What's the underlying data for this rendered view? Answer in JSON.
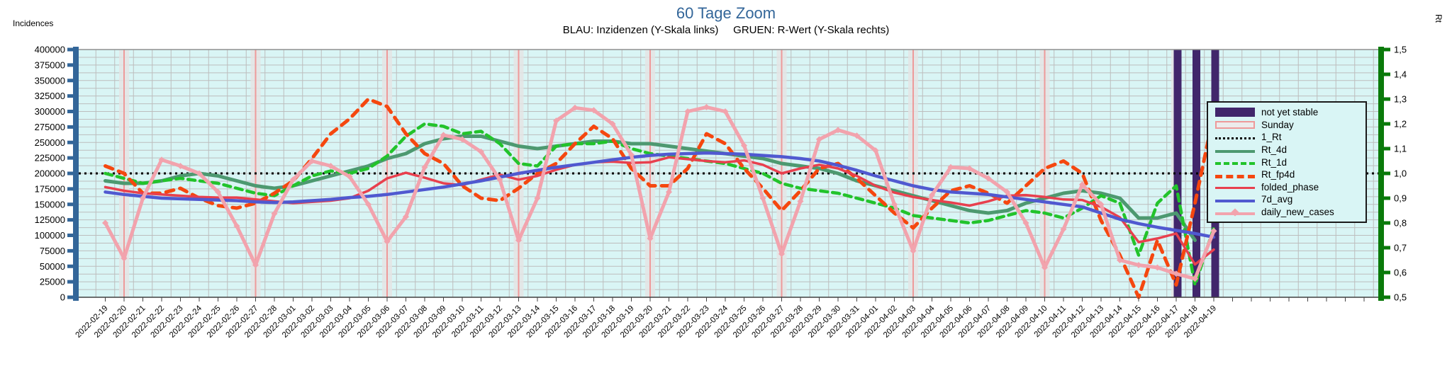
{
  "title": "60 Tage Zoom",
  "subtitle": "BLAU: Inzidenzen (Y-Skala links)     GRUEN: R-Wert (Y-Skala rechts)",
  "left_axis": {
    "label": "Incidences",
    "min": 0,
    "max": 400000,
    "tick_step": 25000,
    "tick_labels": [
      "0",
      "25000",
      "50000",
      "75000",
      "100000",
      "125000",
      "150000",
      "175000",
      "200000",
      "225000",
      "250000",
      "275000",
      "300000",
      "325000",
      "350000",
      "375000",
      "400000"
    ]
  },
  "right_axis": {
    "label": "Rt",
    "min": 0.5,
    "max": 1.5,
    "tick_step": 0.1,
    "tick_labels": [
      "0,5",
      "0,6",
      "0,7",
      "0,8",
      "0,9",
      "1,0",
      "1,1",
      "1,2",
      "1,3",
      "1,4",
      "1,5"
    ]
  },
  "colors": {
    "plot_bg": "#d9f5f5",
    "grid": "#bdbdbd",
    "axis_left": "#336699",
    "axis_right": "#0a7a0a",
    "title": "#336699",
    "sunday_band": "#e4e4e4",
    "sunday_line": "#ee9a9a",
    "not_yet_stable": "#41266b",
    "rt_4d": "#4d9970",
    "rt_1d": "#22c32b",
    "rt_fp4d": "#f5470f",
    "folded_phase": "#e8404e",
    "7d_avg": "#5059d0",
    "daily_new_cases": "#f2a3ad",
    "reference": "#000000"
  },
  "legend": {
    "items": [
      {
        "name": "not yet stable",
        "label": "not yet stable",
        "swatch": "bar",
        "color_key": "not_yet_stable"
      },
      {
        "name": "Sunday",
        "label": "Sunday",
        "swatch": "box",
        "color_key": "sunday_line"
      },
      {
        "name": "1_Rt",
        "label": "1_Rt",
        "swatch": "line",
        "color_key": "reference",
        "dash": "dotted",
        "width": 3
      },
      {
        "name": "Rt_4d",
        "label": "Rt_4d",
        "swatch": "line",
        "color_key": "rt_4d",
        "dash": "solid",
        "width": 4
      },
      {
        "name": "Rt_1d",
        "label": "Rt_1d",
        "swatch": "line",
        "color_key": "rt_1d",
        "dash": "dashed",
        "width": 4
      },
      {
        "name": "Rt_fp4d",
        "label": "Rt_fp4d",
        "swatch": "line",
        "color_key": "rt_fp4d",
        "dash": "dashed",
        "width": 5
      },
      {
        "name": "folded_phase",
        "label": "folded_phase",
        "swatch": "line",
        "color_key": "folded_phase",
        "dash": "solid",
        "width": 3
      },
      {
        "name": "7d_avg",
        "label": "7d_avg",
        "swatch": "line",
        "color_key": "7d_avg",
        "dash": "solid",
        "width": 4
      },
      {
        "name": "daily_new_cases",
        "label": "daily_new_cases",
        "swatch": "line-diamond",
        "color_key": "daily_new_cases",
        "dash": "solid",
        "width": 4
      }
    ]
  },
  "chart_data": {
    "type": "line",
    "title": "60 Tage Zoom",
    "xlabel": "",
    "ylabel_left": "Incidences",
    "ylabel_right": "Rt",
    "ylim_left": [
      0,
      400000
    ],
    "ylim_right": [
      0.5,
      1.5
    ],
    "grid": true,
    "legend_position": "right",
    "x": [
      "2022-02-19",
      "2022-02-20",
      "2022-02-21",
      "2022-02-22",
      "2022-02-23",
      "2022-02-24",
      "2022-02-25",
      "2022-02-26",
      "2022-02-27",
      "2022-02-28",
      "2022-03-01",
      "2022-03-02",
      "2022-03-03",
      "2022-03-04",
      "2022-03-05",
      "2022-03-06",
      "2022-03-07",
      "2022-03-08",
      "2022-03-09",
      "2022-03-10",
      "2022-03-11",
      "2022-03-12",
      "2022-03-13",
      "2022-03-14",
      "2022-03-15",
      "2022-03-16",
      "2022-03-17",
      "2022-03-18",
      "2022-03-19",
      "2022-03-20",
      "2022-03-21",
      "2022-03-22",
      "2022-03-23",
      "2022-03-24",
      "2022-03-25",
      "2022-03-26",
      "2022-03-27",
      "2022-03-28",
      "2022-03-29",
      "2022-03-30",
      "2022-03-31",
      "2022-04-01",
      "2022-04-02",
      "2022-04-03",
      "2022-04-04",
      "2022-04-05",
      "2022-04-06",
      "2022-04-07",
      "2022-04-08",
      "2022-04-09",
      "2022-04-10",
      "2022-04-11",
      "2022-04-12",
      "2022-04-13",
      "2022-04-14",
      "2022-04-15",
      "2022-04-16",
      "2022-04-17",
      "2022-04-18",
      "2022-04-19"
    ],
    "sundays": [
      "2022-02-20",
      "2022-02-27",
      "2022-03-06",
      "2022-03-13",
      "2022-03-20",
      "2022-03-27",
      "2022-04-03",
      "2022-04-10",
      "2022-04-17"
    ],
    "not_yet_stable": [
      "2022-04-17",
      "2022-04-18",
      "2022-04-19"
    ],
    "reference_line": {
      "name": "1_Rt",
      "axis": "right",
      "value": 1.0
    },
    "series": [
      {
        "name": "Rt_4d",
        "axis": "right",
        "color_key": "rt_4d",
        "dash": null,
        "width": 5,
        "values": [
          0.97,
          0.96,
          0.96,
          0.97,
          0.99,
          1.0,
          0.99,
          0.97,
          0.95,
          0.94,
          0.95,
          0.97,
          0.99,
          1.01,
          1.03,
          1.06,
          1.08,
          1.12,
          1.14,
          1.15,
          1.15,
          1.13,
          1.11,
          1.1,
          1.11,
          1.12,
          1.13,
          1.13,
          1.12,
          1.12,
          1.11,
          1.1,
          1.09,
          1.08,
          1.07,
          1.06,
          1.04,
          1.03,
          1.02,
          1.0,
          0.97,
          0.95,
          0.93,
          0.91,
          0.89,
          0.87,
          0.85,
          0.84,
          0.85,
          0.88,
          0.9,
          0.92,
          0.93,
          0.92,
          0.9,
          0.82,
          0.82,
          0.84,
          0.73,
          null
        ]
      },
      {
        "name": "Rt_1d",
        "axis": "right",
        "color_key": "rt_1d",
        "dash": [
          10,
          7
        ],
        "width": 4.5,
        "values": [
          1.0,
          0.98,
          0.96,
          0.97,
          0.98,
          0.97,
          0.96,
          0.94,
          0.92,
          0.91,
          0.95,
          0.99,
          1.01,
          1.0,
          1.02,
          1.07,
          1.15,
          1.2,
          1.19,
          1.16,
          1.17,
          1.12,
          1.04,
          1.03,
          1.11,
          1.12,
          1.12,
          1.13,
          1.1,
          1.08,
          1.07,
          1.06,
          1.05,
          1.04,
          1.02,
          1.0,
          0.96,
          0.94,
          0.93,
          0.92,
          0.9,
          0.88,
          0.86,
          0.83,
          0.82,
          0.81,
          0.8,
          0.81,
          0.83,
          0.85,
          0.84,
          0.82,
          0.86,
          0.91,
          0.88,
          0.67,
          0.88,
          0.95,
          0.55,
          0.78
        ]
      },
      {
        "name": "Rt_fp4d",
        "axis": "right",
        "color_key": "rt_fp4d",
        "dash": [
          11,
          9
        ],
        "width": 5,
        "values": [
          1.03,
          1.0,
          0.92,
          0.92,
          0.94,
          0.9,
          0.87,
          0.86,
          0.88,
          0.92,
          0.97,
          1.06,
          1.16,
          1.22,
          1.3,
          1.27,
          1.16,
          1.08,
          1.04,
          0.95,
          0.9,
          0.89,
          0.94,
          1.0,
          1.04,
          1.12,
          1.19,
          1.14,
          1.02,
          0.95,
          0.95,
          1.02,
          1.16,
          1.12,
          1.02,
          0.94,
          0.85,
          0.93,
          1.02,
          1.04,
          0.98,
          0.91,
          0.84,
          0.78,
          0.86,
          0.93,
          0.95,
          0.92,
          0.88,
          0.95,
          1.02,
          1.05,
          1.0,
          0.81,
          0.67,
          0.5,
          0.73,
          0.55,
          0.88,
          1.24
        ]
      },
      {
        "name": "folded_phase",
        "axis": "left",
        "color_key": "folded_phase",
        "dash": null,
        "width": 3.5,
        "values": [
          178000,
          172000,
          168000,
          166000,
          164000,
          162000,
          161000,
          161000,
          158000,
          155000,
          152000,
          154000,
          156000,
          160000,
          172000,
          192000,
          201000,
          193000,
          184000,
          181000,
          190000,
          198000,
          190000,
          196000,
          206000,
          214000,
          218000,
          219000,
          217000,
          218000,
          226000,
          223000,
          220000,
          218000,
          221000,
          214000,
          200000,
          208000,
          214000,
          208000,
          196000,
          180000,
          169000,
          162000,
          157000,
          153000,
          148000,
          155000,
          164000,
          165000,
          162000,
          158000,
          157000,
          146000,
          129000,
          89000,
          95000,
          103000,
          53000,
          77000
        ]
      },
      {
        "name": "7d_avg",
        "axis": "left",
        "color_key": "7d_avg",
        "dash": null,
        "width": 4.5,
        "values": [
          170000,
          166000,
          163000,
          160000,
          159000,
          158000,
          157000,
          156000,
          154000,
          153000,
          154000,
          156000,
          158000,
          161000,
          163000,
          166000,
          170000,
          174000,
          178000,
          183000,
          188000,
          194000,
          200000,
          205000,
          210000,
          214000,
          218000,
          222000,
          226000,
          229000,
          231000,
          232000,
          233000,
          232000,
          231000,
          229000,
          227000,
          224000,
          220000,
          213000,
          205000,
          196000,
          188000,
          180000,
          174000,
          170000,
          168000,
          166000,
          162000,
          158000,
          154000,
          150000,
          146000,
          136000,
          126000,
          119000,
          113000,
          108000,
          103000,
          97000
        ]
      },
      {
        "name": "daily_new_cases",
        "axis": "left",
        "color_key": "daily_new_cases",
        "dash": null,
        "width": 5,
        "marker": "diamond",
        "values": [
          120000,
          63000,
          160000,
          222000,
          212000,
          200000,
          170000,
          115000,
          52000,
          135000,
          190000,
          220000,
          212000,
          195000,
          150000,
          90000,
          130000,
          210000,
          262000,
          255000,
          235000,
          190000,
          92000,
          160000,
          285000,
          306000,
          302000,
          280000,
          230000,
          95000,
          170000,
          300000,
          307000,
          300000,
          245000,
          160000,
          70000,
          155000,
          255000,
          270000,
          261000,
          237000,
          150000,
          75000,
          165000,
          210000,
          208000,
          192000,
          170000,
          120000,
          48000,
          110000,
          182000,
          150000,
          60000,
          52000,
          48000,
          38000,
          30000,
          107000
        ]
      }
    ]
  }
}
